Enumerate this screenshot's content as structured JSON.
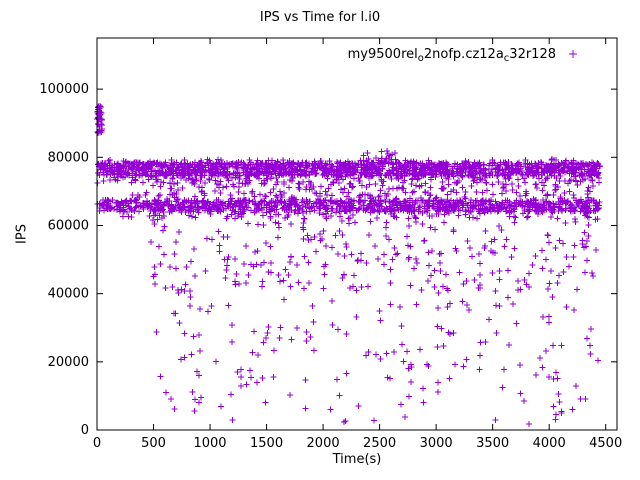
{
  "figure": {
    "title": "IPS vs Time for l.i0",
    "xlabel": "Time(s)",
    "ylabel": "IPS"
  },
  "legend": {
    "raw_label": "my9500rel_o2nofp.cz12a_c32r128",
    "parts": [
      {
        "t": "my9500rel",
        "sub": false
      },
      {
        "t": "o",
        "sub": true
      },
      {
        "t": "2nofp.cz12a",
        "sub": false
      },
      {
        "t": "c",
        "sub": true
      },
      {
        "t": "32r128",
        "sub": false
      }
    ],
    "marker": "plus"
  },
  "chart_data": {
    "type": "scatter",
    "title": "IPS vs Time for l.i0",
    "xlabel": "Time(s)",
    "ylabel": "IPS",
    "xlim": [
      0,
      4600
    ],
    "ylim": [
      0,
      115000
    ],
    "xticks": [
      0,
      500,
      1000,
      1500,
      2000,
      2500,
      3000,
      3500,
      4000,
      4500
    ],
    "yticks": [
      0,
      20000,
      40000,
      60000,
      80000,
      100000
    ],
    "grid": false,
    "legend_position": "top-right-inside",
    "marker": "plus",
    "color": "#9400d3",
    "series": [
      {
        "name": "my9500rel_o2nofp.cz12a_c32r128",
        "marker": "plus",
        "color": "#9400d3"
      }
    ],
    "seed": 42,
    "clusters": [
      {
        "name": "startup-spike",
        "x": [
          2,
          45
        ],
        "y": [
          87000,
          96000
        ],
        "count": 35
      },
      {
        "name": "upper-band-core",
        "x": [
          0,
          4450
        ],
        "y": [
          74500,
          78500
        ],
        "count": 1300
      },
      {
        "name": "upper-band-spread",
        "x": [
          0,
          4450
        ],
        "y": [
          72000,
          79500
        ],
        "count": 400
      },
      {
        "name": "upper-blip",
        "x": [
          2350,
          2650
        ],
        "y": [
          78500,
          82000
        ],
        "count": 20
      },
      {
        "name": "gap-scatter",
        "x": [
          300,
          4450
        ],
        "y": [
          68500,
          74000
        ],
        "count": 200
      },
      {
        "name": "lower-band-core",
        "x": [
          0,
          4450
        ],
        "y": [
          64000,
          67500
        ],
        "count": 900
      },
      {
        "name": "lower-band-spread",
        "x": [
          200,
          4450
        ],
        "y": [
          62000,
          69000
        ],
        "count": 300
      },
      {
        "name": "mid-scatter",
        "x": [
          450,
          4450
        ],
        "y": [
          40000,
          62000
        ],
        "count": 270
      },
      {
        "name": "deep-scatter",
        "x": [
          500,
          4450
        ],
        "y": [
          15000,
          40000
        ],
        "count": 130
      },
      {
        "name": "sparse-bottom",
        "x": [
          550,
          4450
        ],
        "y": [
          1500,
          15000
        ],
        "count": 50
      }
    ]
  }
}
